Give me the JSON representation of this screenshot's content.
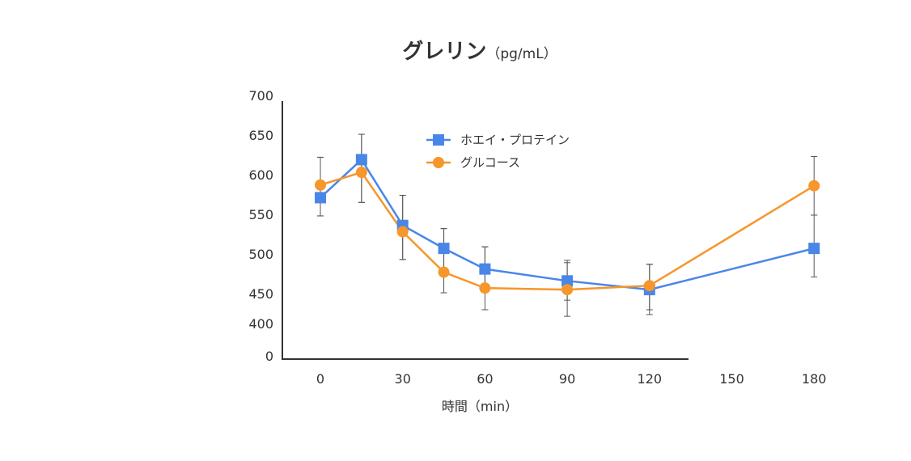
{
  "chart_data": {
    "type": "line",
    "title": "グレリン",
    "title_unit": "（pg/mL）",
    "xlabel": "時間（min）",
    "ylabel": "",
    "x_ticks": [
      "0",
      "30",
      "60",
      "90",
      "120",
      "150",
      "180"
    ],
    "y_ticks": [
      "700",
      "650",
      "600",
      "550",
      "500",
      "450",
      "400",
      "0"
    ],
    "y_axis_break": "0 to 400 compressed",
    "legend_position": "upper-middle",
    "grid": false,
    "series": [
      {
        "name": "ホエイ・プロテイン",
        "marker": "square",
        "color": "#4a86e8",
        "points": [
          {
            "x": 0,
            "y": 571,
            "err_hi": 622,
            "err_lo": 548
          },
          {
            "x": 15,
            "y": 619,
            "err_hi": 651,
            "err_lo": 565
          },
          {
            "x": 30,
            "y": 536,
            "err_hi": 574,
            "err_lo": 493
          },
          {
            "x": 45,
            "y": 507,
            "err_hi": 532,
            "err_lo": 478
          },
          {
            "x": 60,
            "y": 481,
            "err_hi": 509,
            "err_lo": 455
          },
          {
            "x": 90,
            "y": 466,
            "err_hi": 492,
            "err_lo": 439
          },
          {
            "x": 120,
            "y": 455,
            "err_hi": 487,
            "err_lo": 423
          },
          {
            "x": 180,
            "y": 507,
            "err_hi": 549,
            "err_lo": 471
          }
        ]
      },
      {
        "name": "グルコース",
        "marker": "circle",
        "color": "#f6962b",
        "points": [
          {
            "x": 0,
            "y": 587,
            "err_hi": 622,
            "err_lo": 548
          },
          {
            "x": 15,
            "y": 603,
            "err_hi": 651,
            "err_lo": 565
          },
          {
            "x": 30,
            "y": 528,
            "err_hi": 574,
            "err_lo": 493
          },
          {
            "x": 45,
            "y": 477,
            "err_hi": 532,
            "err_lo": 451
          },
          {
            "x": 60,
            "y": 457,
            "err_hi": 509,
            "err_lo": 423
          },
          {
            "x": 90,
            "y": 455,
            "err_hi": 489,
            "err_lo": 412
          },
          {
            "x": 120,
            "y": 460,
            "err_hi": 487,
            "err_lo": 415
          },
          {
            "x": 180,
            "y": 586,
            "err_hi": 623,
            "err_lo": 549
          }
        ]
      }
    ]
  }
}
